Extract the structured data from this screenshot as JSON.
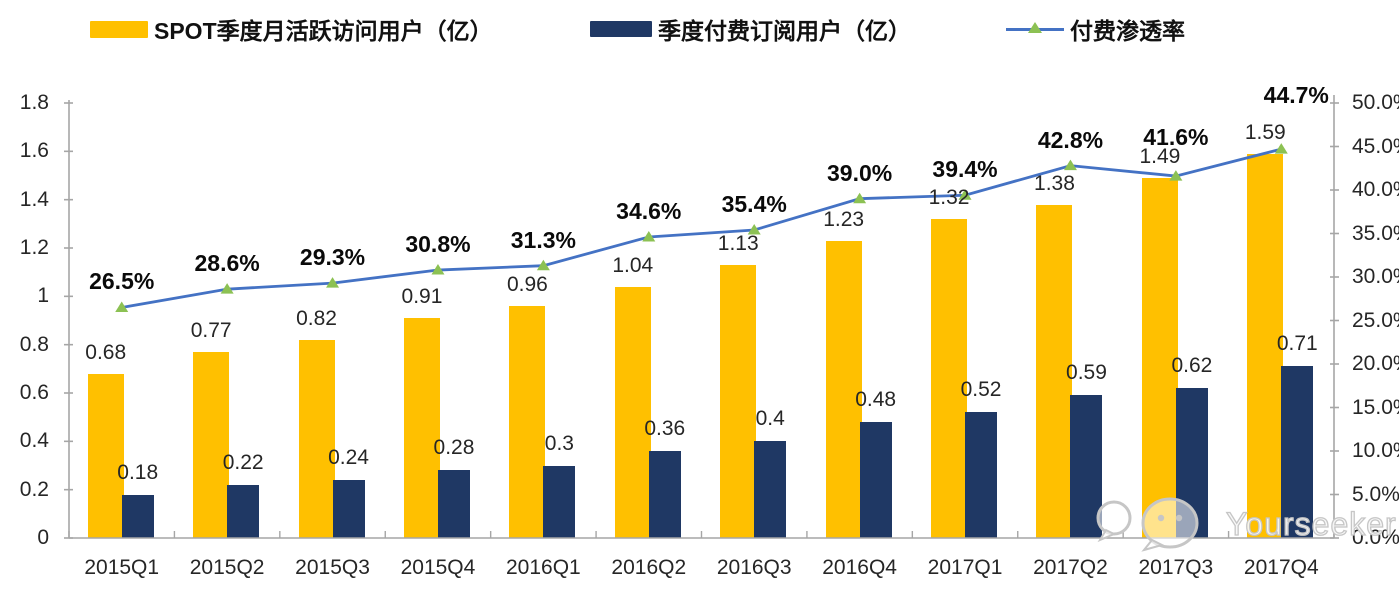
{
  "legend": {
    "items": [
      {
        "label": "SPOT季度月活跃访问用户（亿）",
        "swatch": "bar",
        "color": "#FFC000"
      },
      {
        "label": "季度付费订阅用户（亿）",
        "swatch": "bar",
        "color": "#1F3864"
      },
      {
        "label": "付费渗透率",
        "swatch": "line-triangle",
        "color": "#4472C4",
        "marker_color": "#8CC153"
      }
    ]
  },
  "chart_data": {
    "type": "combo-bar-line",
    "title": "",
    "categories": [
      "2015Q1",
      "2015Q2",
      "2015Q3",
      "2015Q4",
      "2016Q1",
      "2016Q2",
      "2016Q3",
      "2016Q4",
      "2017Q1",
      "2017Q2",
      "2017Q3",
      "2017Q4"
    ],
    "series": [
      {
        "name": "SPOT季度月活跃访问用户（亿）",
        "type": "bar",
        "axis": "left",
        "color": "#FFC000",
        "values": [
          0.68,
          0.77,
          0.82,
          0.91,
          0.96,
          1.04,
          1.13,
          1.23,
          1.32,
          1.38,
          1.49,
          1.59
        ],
        "labels": [
          "0.68",
          "0.77",
          "0.82",
          "0.91",
          "0.96",
          "1.04",
          "1.13",
          "1.23",
          "1.32",
          "1.38",
          "1.49",
          "1.59"
        ]
      },
      {
        "name": "季度付费订阅用户（亿）",
        "type": "bar",
        "axis": "left",
        "color": "#1F3864",
        "values": [
          0.18,
          0.22,
          0.24,
          0.28,
          0.3,
          0.36,
          0.4,
          0.48,
          0.52,
          0.59,
          0.62,
          0.71
        ],
        "labels": [
          "0.18",
          "0.22",
          "0.24",
          "0.28",
          "0.3",
          "0.36",
          "0.4",
          "0.48",
          "0.52",
          "0.59",
          "0.62",
          "0.71"
        ]
      },
      {
        "name": "付费渗透率",
        "type": "line",
        "axis": "right",
        "color": "#4472C4",
        "marker": "triangle",
        "marker_color": "#8CC153",
        "values": [
          26.5,
          28.6,
          29.3,
          30.8,
          31.3,
          34.6,
          35.4,
          39.0,
          39.4,
          42.8,
          41.6,
          44.7
        ],
        "labels": [
          "26.5%",
          "28.6%",
          "29.3%",
          "30.8%",
          "31.3%",
          "34.6%",
          "35.4%",
          "39.0%",
          "39.4%",
          "42.8%",
          "41.6%",
          "44.7%"
        ]
      }
    ],
    "left_axis": {
      "min": 0,
      "max": 1.8,
      "tick_step": 0.2,
      "tick_labels": [
        "0",
        "0.2",
        "0.4",
        "0.6",
        "0.8",
        "1",
        "1.2",
        "1.4",
        "1.6",
        "1.8"
      ]
    },
    "right_axis": {
      "min": 0,
      "max": 50,
      "tick_step": 5,
      "tick_labels": [
        "0.0%",
        "5.0%",
        "10.0%",
        "15.0%",
        "20.0%",
        "25.0%",
        "30.0%",
        "35.0%",
        "40.0%",
        "45.0%",
        "50.0%"
      ]
    },
    "grid": false,
    "legend_position": "top",
    "axis_line_color": "#A6A6A6"
  },
  "watermark": {
    "text": "Yourseeker",
    "icon": "wechat-icon"
  }
}
